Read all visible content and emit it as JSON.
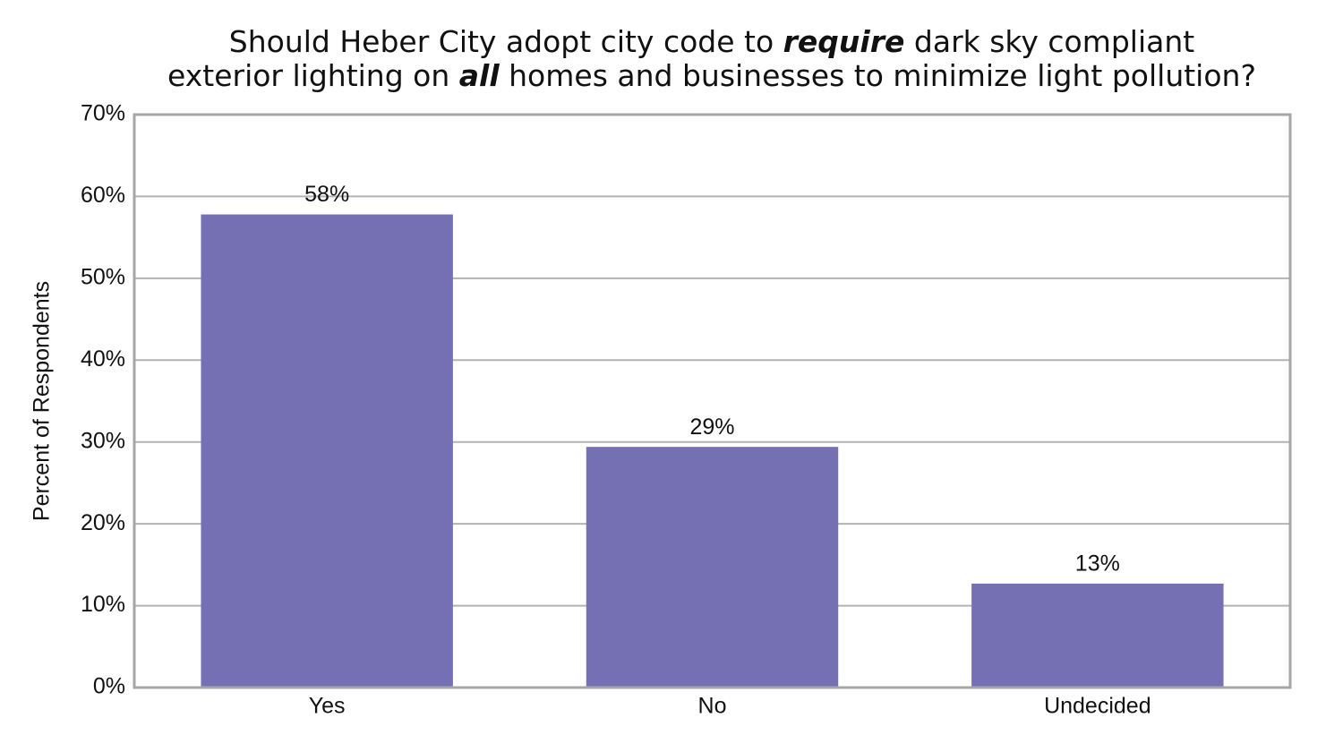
{
  "chart_data": {
    "type": "bar",
    "title": [
      [
        "Should Heber City adopt city code to ",
        "require",
        " dark sky compliant"
      ],
      [
        "exterior lighting on ",
        "all",
        " homes and businesses to minimize light pollution?"
      ]
    ],
    "y_label": "Percent of Respondents",
    "categories": [
      "Yes",
      "No",
      "Undecided"
    ],
    "values": [
      57.8,
      29.4,
      12.7
    ],
    "value_labels": [
      "58%",
      "29%",
      "13%"
    ],
    "color": "#7570b3",
    "ylim": [
      0,
      70
    ],
    "yticks": [
      {
        "value": 0,
        "label": "0%"
      },
      {
        "value": 10,
        "label": "10%"
      },
      {
        "value": 20,
        "label": "20%"
      },
      {
        "value": 30,
        "label": "30%"
      },
      {
        "value": 40,
        "label": "40%"
      },
      {
        "value": 50,
        "label": "50%"
      },
      {
        "value": 60,
        "label": "60%"
      },
      {
        "value": 70,
        "label": "70%"
      }
    ],
    "grid": true
  }
}
